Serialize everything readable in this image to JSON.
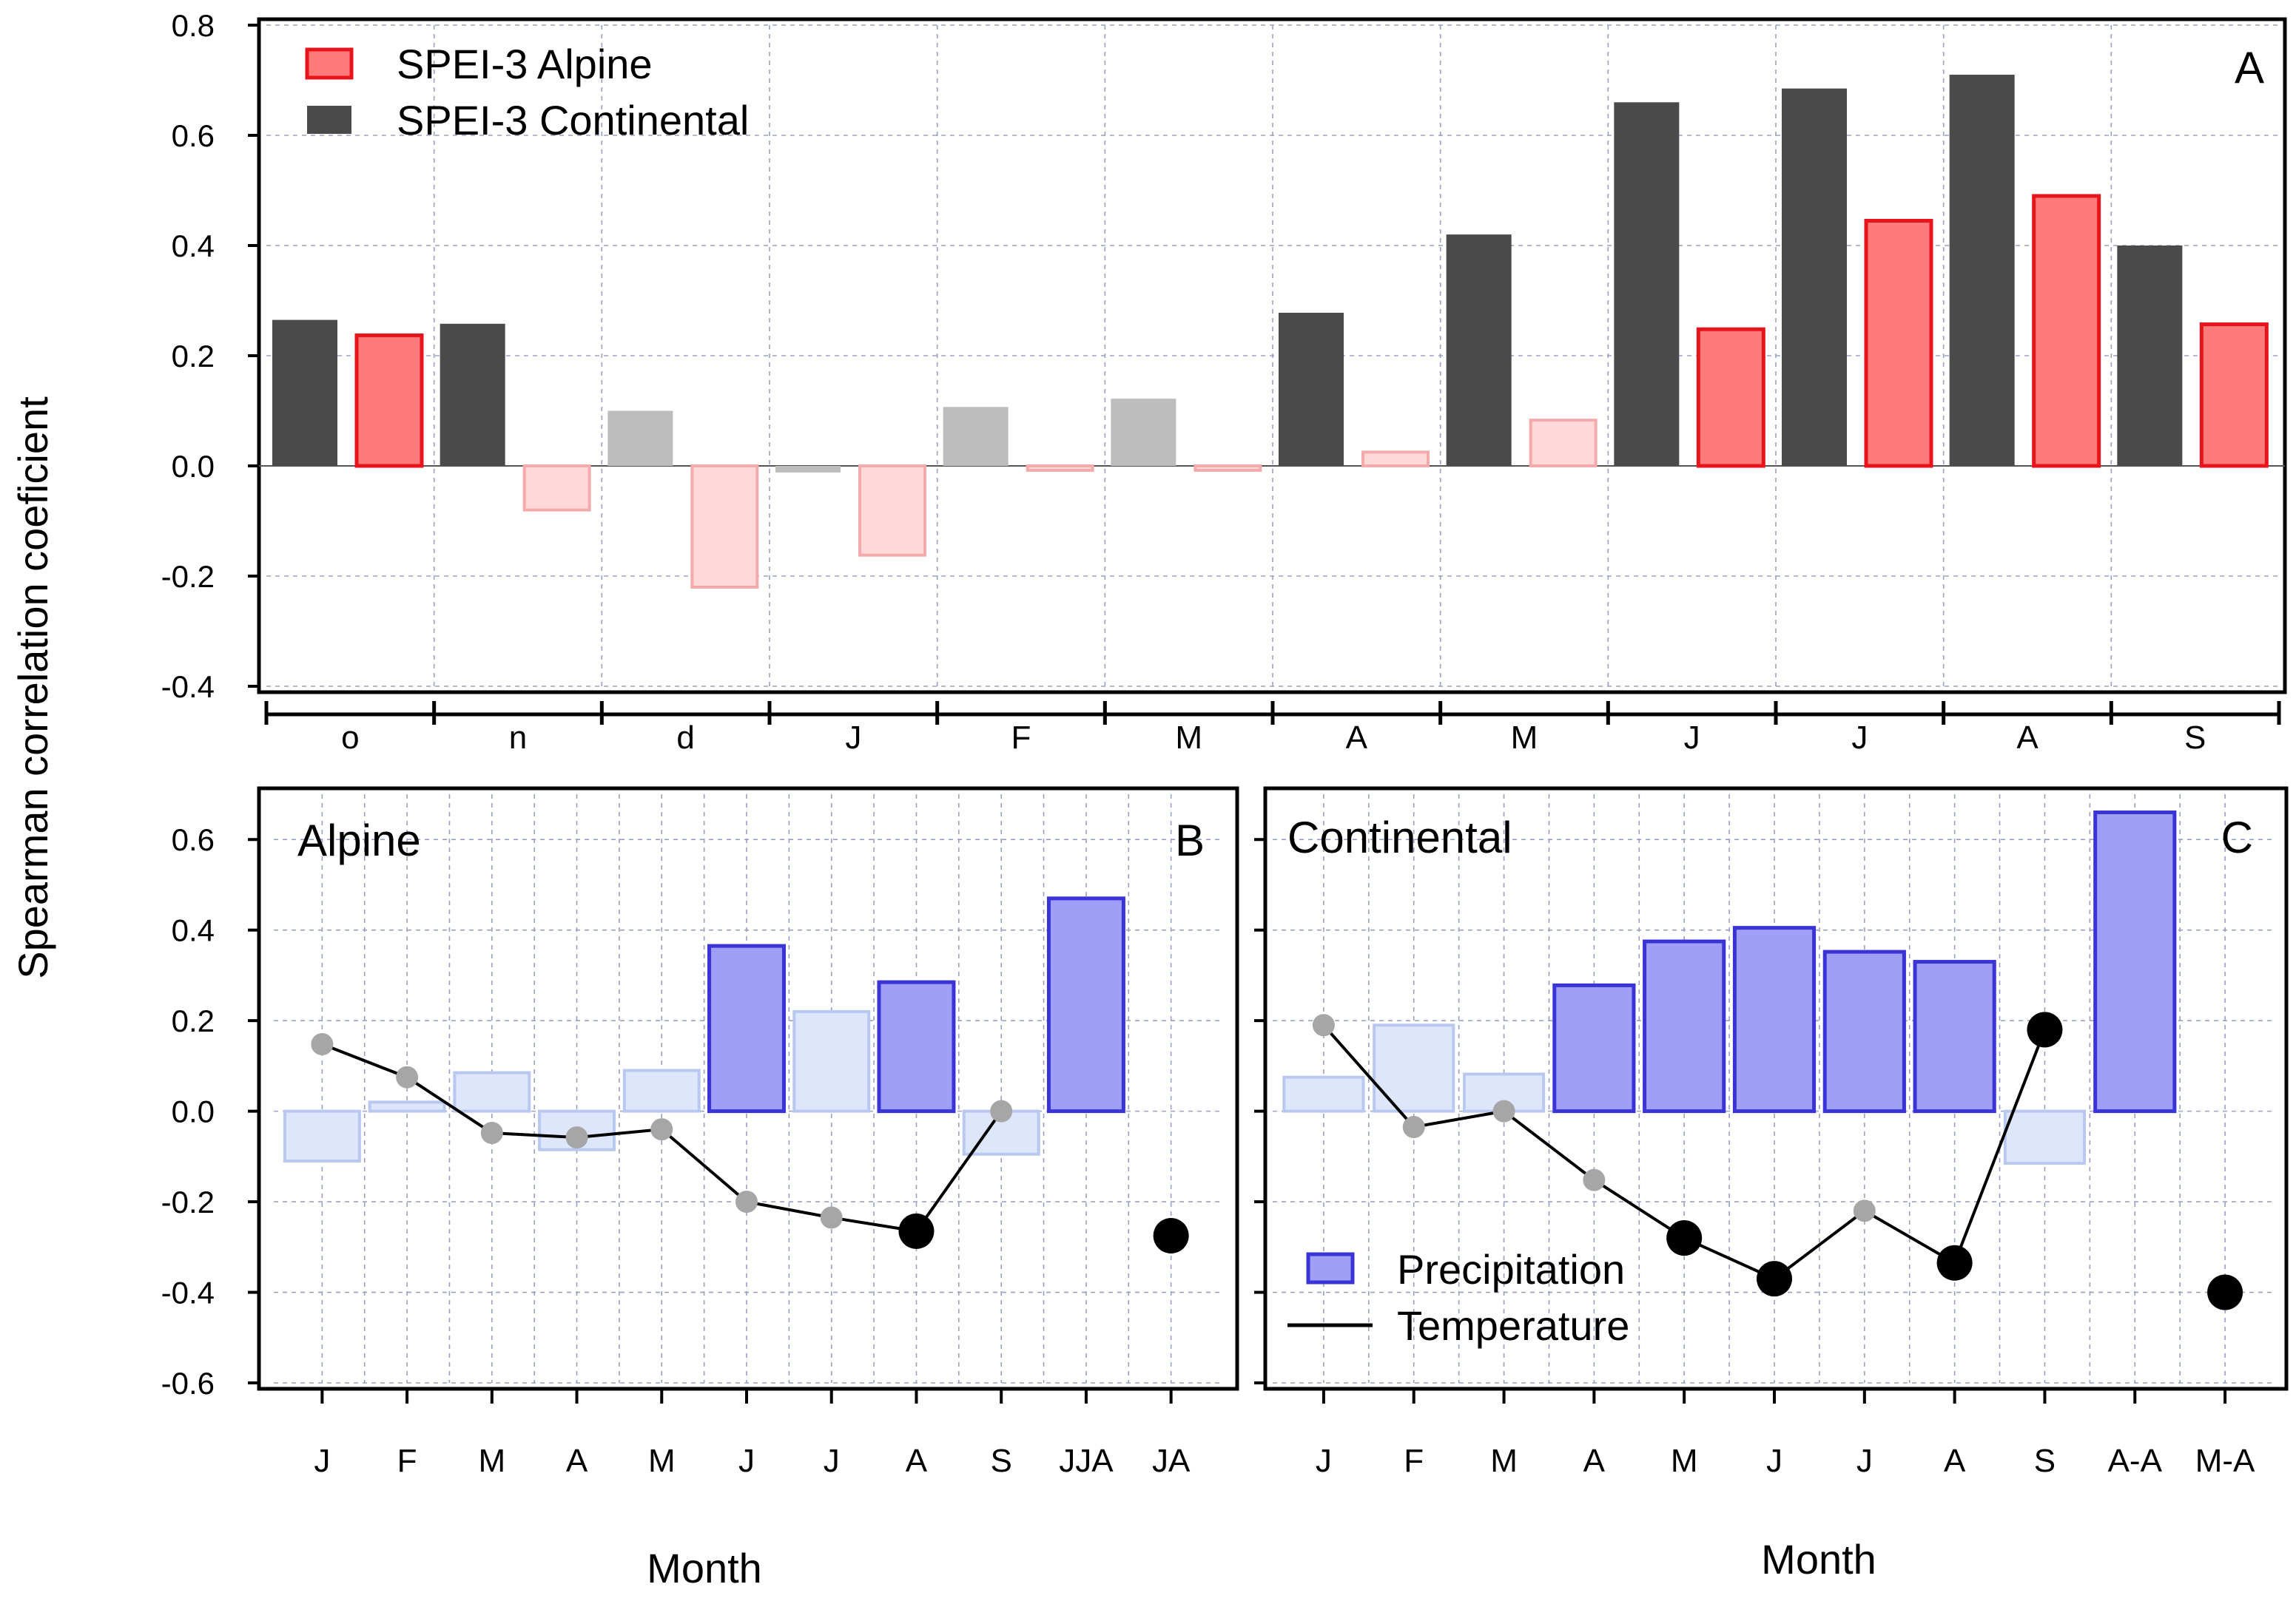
{
  "ylabel": "Spearman correlation coeficient",
  "colors": {
    "alpine_sig": "#ff7b7b",
    "alpine_sig_edge": "#e8141c",
    "alpine_ns": "#ffd9d9",
    "alpine_ns_edge": "#f4aaaa",
    "continental_sig": "#4a4a4a",
    "continental_ns": "#bdbdbd",
    "precip_sig": "#9f9ff8",
    "precip_sig_edge": "#3a33d6",
    "precip_ns": "#dde6fb",
    "precip_ns_edge": "#b8c8ef",
    "temp_sig": "#000000",
    "temp_ns": "#a6a6a6"
  },
  "chart_data": [
    {
      "id": "A",
      "type": "bar",
      "panel_label": "A",
      "categories": [
        "o",
        "n",
        "d",
        "J",
        "F",
        "M",
        "A",
        "M",
        "J",
        "J",
        "A",
        "S"
      ],
      "ylim": [
        -0.4,
        0.8
      ],
      "yticks": [
        "0.8",
        "0.6",
        "0.4",
        "0.2",
        "0.0",
        "-0.2",
        "-0.4"
      ],
      "ytick_values": [
        0.8,
        0.6,
        0.4,
        0.2,
        0.0,
        -0.2,
        -0.4
      ],
      "grid": true,
      "legend_position": "top-left",
      "series": [
        {
          "name": "SPEI-3 Continental",
          "legend_label": "SPEI-3 Continental",
          "values": [
            0.265,
            0.258,
            0.1,
            -0.012,
            0.107,
            0.122,
            0.278,
            0.42,
            0.66,
            0.685,
            0.71,
            0.4
          ],
          "significant": [
            true,
            true,
            false,
            false,
            false,
            false,
            true,
            true,
            true,
            true,
            true,
            true
          ]
        },
        {
          "name": "SPEI-3 Alpine",
          "legend_label": "SPEI-3 Alpine",
          "values": [
            0.237,
            -0.08,
            -0.22,
            -0.162,
            -0.008,
            -0.008,
            0.025,
            0.083,
            0.248,
            0.445,
            0.49,
            0.257
          ],
          "significant": [
            true,
            false,
            false,
            false,
            false,
            false,
            false,
            false,
            true,
            true,
            true,
            true
          ]
        }
      ]
    },
    {
      "id": "B",
      "type": "bar",
      "panel_label": "B",
      "title": "Alpine",
      "xlabel": "Month",
      "categories": [
        "J",
        "F",
        "M",
        "A",
        "M",
        "J",
        "J",
        "A",
        "S",
        "JJA",
        "JA"
      ],
      "ylim": [
        -0.6,
        0.7
      ],
      "yticks": [
        "0.6",
        "0.4",
        "0.2",
        "0.0",
        "-0.2",
        "-0.4",
        "-0.6"
      ],
      "ytick_values": [
        0.6,
        0.4,
        0.2,
        0.0,
        -0.2,
        -0.4,
        -0.6
      ],
      "grid": true,
      "series": [
        {
          "name": "Precipitation",
          "kind": "bar",
          "values": [
            -0.11,
            0.02,
            0.085,
            -0.085,
            0.09,
            0.365,
            0.22,
            0.285,
            -0.095,
            0.47,
            null
          ],
          "significant": [
            false,
            false,
            false,
            false,
            false,
            true,
            false,
            true,
            false,
            true,
            false
          ]
        },
        {
          "name": "Temperature",
          "kind": "line",
          "values": [
            0.148,
            0.075,
            -0.048,
            -0.058,
            -0.04,
            -0.2,
            -0.235,
            -0.265,
            0.0,
            null,
            -0.275
          ],
          "significant": [
            false,
            false,
            false,
            false,
            false,
            false,
            false,
            true,
            false,
            false,
            true
          ],
          "connected_count": 9
        }
      ]
    },
    {
      "id": "C",
      "type": "bar",
      "panel_label": "C",
      "title": "Continental",
      "xlabel": "Month",
      "categories": [
        "J",
        "F",
        "M",
        "A",
        "M",
        "J",
        "J",
        "A",
        "S",
        "A-A",
        "M-A"
      ],
      "ylim": [
        -0.6,
        0.7
      ],
      "grid": true,
      "legend_position": "bottom-left",
      "series": [
        {
          "name": "Precipitation",
          "legend_label": "Precipitation",
          "kind": "bar",
          "values": [
            0.075,
            0.19,
            0.082,
            0.278,
            0.375,
            0.405,
            0.352,
            0.33,
            -0.115,
            0.66,
            null
          ],
          "significant": [
            false,
            false,
            false,
            true,
            true,
            true,
            true,
            true,
            false,
            true,
            false
          ]
        },
        {
          "name": "Temperature",
          "legend_label": "Temperature",
          "kind": "line",
          "values": [
            0.19,
            -0.035,
            0.0,
            -0.152,
            -0.28,
            -0.37,
            -0.22,
            -0.335,
            0.18,
            null,
            -0.4
          ],
          "significant": [
            false,
            false,
            false,
            false,
            true,
            true,
            false,
            true,
            true,
            false,
            true
          ],
          "connected_count": 9
        }
      ]
    }
  ]
}
